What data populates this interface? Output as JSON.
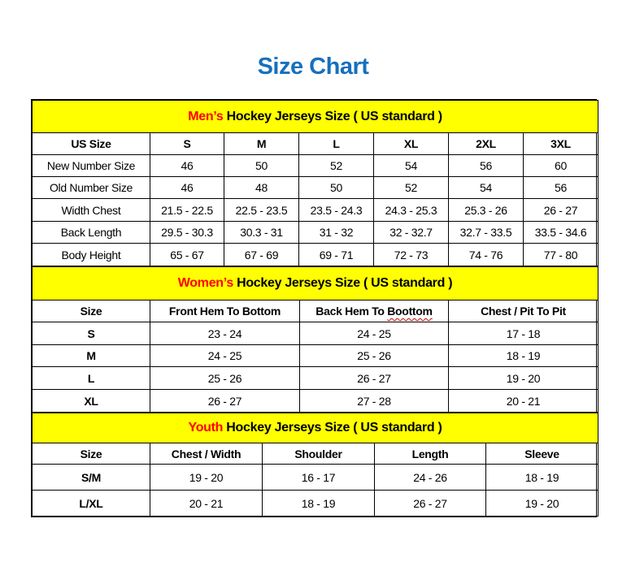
{
  "title": "Size Chart",
  "colors": {
    "title": "#1570be",
    "section_bg": "#ffff00",
    "section_accent": "#ff0000"
  },
  "sections": [
    {
      "id": "men",
      "prefix": "Men’s",
      "heading": " Hockey Jerseys Size ( US standard )",
      "columns": [
        "US Size",
        "S",
        "M",
        "L",
        "XL",
        "2XL",
        "3XL"
      ],
      "rows": [
        [
          "New Number Size",
          "46",
          "50",
          "52",
          "54",
          "56",
          "60"
        ],
        [
          "Old Number Size",
          "46",
          "48",
          "50",
          "52",
          "54",
          "56"
        ],
        [
          "Width Chest",
          "21.5 - 22.5",
          "22.5 - 23.5",
          "23.5 - 24.3",
          "24.3 - 25.3",
          "25.3 - 26",
          "26 - 27"
        ],
        [
          "Back Length",
          "29.5 - 30.3",
          "30.3 - 31",
          "31 - 32",
          "32 - 32.7",
          "32.7 - 33.5",
          "33.5 - 34.6"
        ],
        [
          "Body Height",
          "65 - 67",
          "67 - 69",
          "69 - 71",
          "72 - 73",
          "74 - 76",
          "77 - 80"
        ]
      ]
    },
    {
      "id": "women",
      "prefix": "Women’s",
      "heading": " Hockey Jerseys Size ( US standard )",
      "columns": [
        "Size",
        "Front Hem To Bottom",
        "Back Hem To Boottom",
        "Chest / Pit To Pit"
      ],
      "rows": [
        [
          "S",
          "23 - 24",
          "24 - 25",
          "17 - 18"
        ],
        [
          "M",
          "24 - 25",
          "25 - 26",
          "18 - 19"
        ],
        [
          "L",
          "25 - 26",
          "26 - 27",
          "19 - 20"
        ],
        [
          "XL",
          "26 - 27",
          "27 - 28",
          "20 - 21"
        ]
      ]
    },
    {
      "id": "youth",
      "prefix": "Youth",
      "heading": " Hockey Jerseys Size ( US standard )",
      "columns": [
        "Size",
        "Chest / Width",
        "Shoulder",
        "Length",
        "Sleeve"
      ],
      "rows": [
        [
          "S/M",
          "19 - 20",
          "16 - 17",
          "24 - 26",
          "18 - 19"
        ],
        [
          "L/XL",
          "20 - 21",
          "18 - 19",
          "26 - 27",
          "19 - 20"
        ]
      ]
    }
  ]
}
